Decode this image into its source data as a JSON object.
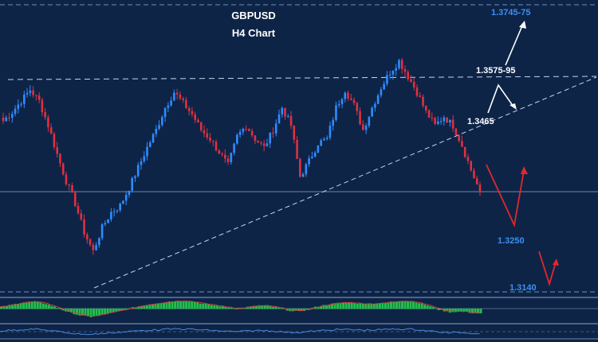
{
  "chart_data": {
    "type": "candlestick",
    "title": "GBPUSD",
    "subtitle": "H4 Chart",
    "colors": {
      "background": "#0d2447",
      "bull": "#2f8cff",
      "bear": "#e03040",
      "level_text_blue": "#3d8ff0",
      "level_text_white": "#ffffff",
      "arrow_white": "#ffffff",
      "arrow_red": "#e0282c",
      "histogram": "#22c04a",
      "signal": "#d04040",
      "osc_line": "#4a88e0"
    },
    "levels": [
      {
        "label": "1.3745-75",
        "value": 1.376,
        "color": "blue"
      },
      {
        "label": "1.3575-95",
        "value": 1.3585,
        "color": "white"
      },
      {
        "label": "1.3465",
        "value": 1.3465,
        "color": "white"
      },
      {
        "label": "1.3250",
        "value": 1.325,
        "color": "blue"
      },
      {
        "label": "1.3140",
        "value": 1.314,
        "color": "blue"
      }
    ],
    "price_path": [
      1.3515,
      1.3535,
      1.356,
      1.3585,
      1.356,
      1.3505,
      1.344,
      1.338,
      1.333,
      1.3265,
      1.3222,
      1.3275,
      1.331,
      1.3325,
      1.3365,
      1.341,
      1.3455,
      1.3495,
      1.3545,
      1.358,
      1.3555,
      1.353,
      1.3495,
      1.3475,
      1.3445,
      1.3415,
      1.348,
      1.3505,
      1.3475,
      1.3455,
      1.3495,
      1.3545,
      1.3505,
      1.339,
      1.3425,
      1.3465,
      1.3475,
      1.3545,
      1.3585,
      1.355,
      1.3495,
      1.3545,
      1.359,
      1.3625,
      1.365,
      1.3615,
      1.358,
      1.3535,
      1.3505,
      1.3525,
      1.3505,
      1.346,
      1.3405,
      1.3355
    ],
    "indicator_path": [
      0.2,
      0.5,
      0.8,
      0.9,
      0.6,
      0.1,
      -0.4,
      -0.8,
      -1.0,
      -0.7,
      -0.4,
      -0.1,
      0.2,
      0.5,
      0.7,
      0.9,
      1.0,
      0.9,
      0.6,
      0.4,
      0.2,
      0.0,
      0.2,
      0.4,
      0.3,
      0.0,
      -0.3,
      -0.2,
      0.2,
      0.5,
      0.7,
      0.8,
      0.6,
      0.6,
      0.7,
      0.9,
      1.0,
      0.8,
      0.4,
      -0.1,
      -0.4,
      -0.3,
      -0.5,
      -0.6
    ]
  }
}
